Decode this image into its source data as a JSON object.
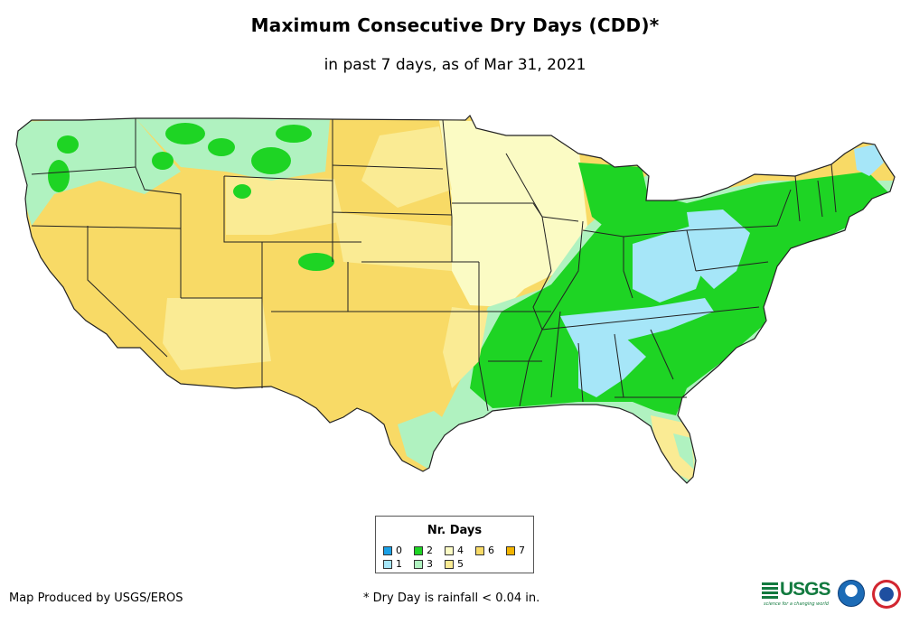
{
  "title": "Maximum Consecutive Dry Days (CDD)*",
  "subtitle": "in past 7 days, as of Mar 31, 2021",
  "map": {
    "region": "Contiguous United States",
    "category_colors": {
      "0": "#1aa0e6",
      "1": "#a6e6f8",
      "2": "#1ed424",
      "3": "#b0f2c0",
      "4": "#fbfbc4",
      "5": "#faeb94",
      "6": "#f8da66",
      "7": "#f2b400"
    },
    "state_border_color": "#222222"
  },
  "legend": {
    "title": "Nr. Days",
    "items": [
      {
        "label": "0",
        "color": "#1aa0e6"
      },
      {
        "label": "1",
        "color": "#a6e6f8"
      },
      {
        "label": "2",
        "color": "#1ed424"
      },
      {
        "label": "3",
        "color": "#b0f2c0"
      },
      {
        "label": "4",
        "color": "#fbfbc4"
      },
      {
        "label": "5",
        "color": "#faeb94"
      },
      {
        "label": "6",
        "color": "#f8da66"
      },
      {
        "label": "7",
        "color": "#f2b400"
      }
    ]
  },
  "footer": {
    "credit": "Map Produced by USGS/EROS",
    "footnote": "* Dry Day is rainfall < 0.04 in.",
    "logos": {
      "usgs_text": "USGS",
      "usgs_tagline": "science for a changing world"
    }
  }
}
